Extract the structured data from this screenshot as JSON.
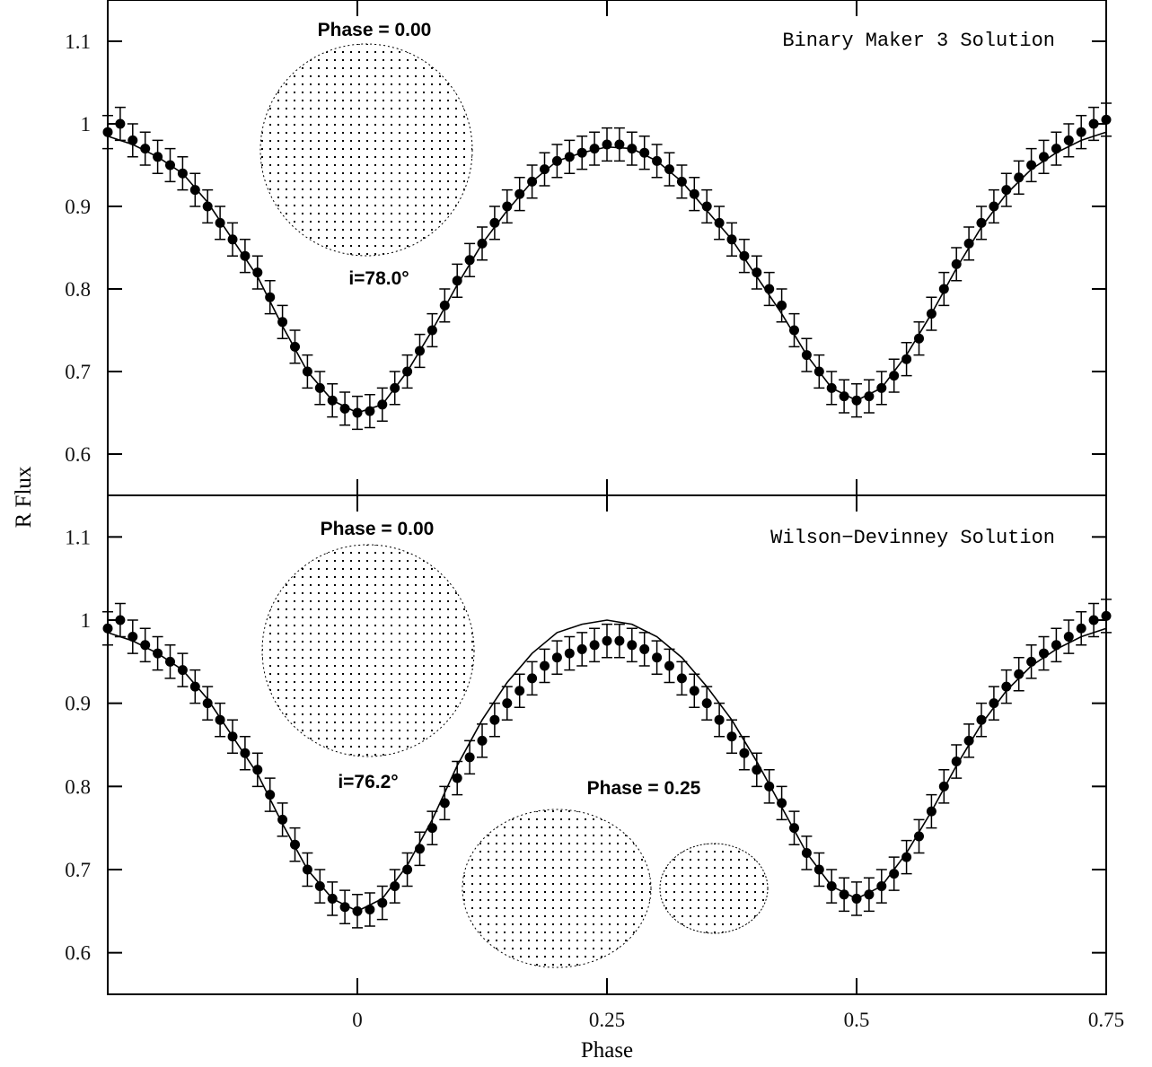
{
  "chart_data": [
    {
      "type": "scatter",
      "xlim": [
        -0.25,
        0.75
      ],
      "xticks": [
        0,
        0.25,
        0.5,
        0.75
      ],
      "xticklabels": false,
      "ylim": [
        0.55,
        1.15
      ],
      "yticks": [
        0.6,
        0.7,
        0.8,
        0.9,
        1,
        1.1
      ],
      "ylabel": "R Flux",
      "annotations": [
        "Phase = 0.00",
        "i=78.0°",
        "Binary Maker 3 Solution"
      ],
      "x": [
        -0.25,
        -0.2375,
        -0.225,
        -0.2125,
        -0.2,
        -0.1875,
        -0.175,
        -0.1625,
        -0.15,
        -0.1375,
        -0.125,
        -0.1125,
        -0.1,
        -0.0875,
        -0.075,
        -0.0625,
        -0.05,
        -0.0375,
        -0.025,
        -0.0125,
        0,
        0.0125,
        0.025,
        0.0375,
        0.05,
        0.0625,
        0.075,
        0.0875,
        0.1,
        0.1125,
        0.125,
        0.1375,
        0.15,
        0.1625,
        0.175,
        0.1875,
        0.2,
        0.2125,
        0.225,
        0.2375,
        0.25,
        0.2625,
        0.275,
        0.2875,
        0.3,
        0.3125,
        0.325,
        0.3375,
        0.35,
        0.3625,
        0.375,
        0.3875,
        0.4,
        0.4125,
        0.425,
        0.4375,
        0.45,
        0.4625,
        0.475,
        0.4875,
        0.5,
        0.5125,
        0.525,
        0.5375,
        0.55,
        0.5625,
        0.575,
        0.5875,
        0.6,
        0.6125,
        0.625,
        0.6375,
        0.65,
        0.6625,
        0.675,
        0.6875,
        0.7,
        0.7125,
        0.725,
        0.7375,
        0.75
      ],
      "series": [
        {
          "style": "points",
          "color": "#000000",
          "error": 0.02,
          "values": [
            0.99,
            1.0,
            0.98,
            0.97,
            0.96,
            0.95,
            0.94,
            0.92,
            0.9,
            0.88,
            0.86,
            0.84,
            0.82,
            0.79,
            0.76,
            0.73,
            0.7,
            0.68,
            0.665,
            0.655,
            0.65,
            0.652,
            0.66,
            0.68,
            0.7,
            0.725,
            0.75,
            0.78,
            0.81,
            0.835,
            0.855,
            0.88,
            0.9,
            0.915,
            0.93,
            0.945,
            0.955,
            0.96,
            0.965,
            0.97,
            0.975,
            0.975,
            0.97,
            0.965,
            0.955,
            0.945,
            0.93,
            0.915,
            0.9,
            0.88,
            0.86,
            0.84,
            0.82,
            0.8,
            0.78,
            0.75,
            0.72,
            0.7,
            0.68,
            0.67,
            0.665,
            0.67,
            0.68,
            0.695,
            0.715,
            0.74,
            0.77,
            0.8,
            0.83,
            0.855,
            0.88,
            0.9,
            0.92,
            0.935,
            0.95,
            0.96,
            0.97,
            0.98,
            0.99,
            1.0,
            1.005
          ]
        },
        {
          "style": "line",
          "color": "#000000",
          "x": [
            -0.25,
            -0.225,
            -0.2,
            -0.175,
            -0.15,
            -0.125,
            -0.1,
            -0.075,
            -0.05,
            -0.025,
            0,
            0.025,
            0.05,
            0.075,
            0.1,
            0.125,
            0.15,
            0.175,
            0.2,
            0.225,
            0.25,
            0.275,
            0.3,
            0.325,
            0.35,
            0.375,
            0.4,
            0.425,
            0.45,
            0.475,
            0.5,
            0.525,
            0.55,
            0.575,
            0.6,
            0.625,
            0.65,
            0.675,
            0.7,
            0.725,
            0.75
          ],
          "values": [
            0.985,
            0.975,
            0.96,
            0.94,
            0.905,
            0.86,
            0.815,
            0.755,
            0.7,
            0.665,
            0.65,
            0.66,
            0.7,
            0.75,
            0.805,
            0.855,
            0.895,
            0.93,
            0.955,
            0.965,
            0.972,
            0.97,
            0.955,
            0.93,
            0.895,
            0.86,
            0.815,
            0.77,
            0.72,
            0.68,
            0.665,
            0.68,
            0.72,
            0.77,
            0.825,
            0.875,
            0.915,
            0.945,
            0.965,
            0.98,
            0.99
          ]
        }
      ]
    },
    {
      "type": "scatter",
      "xlim": [
        -0.25,
        0.75
      ],
      "xticks": [
        0,
        0.25,
        0.5,
        0.75
      ],
      "xticklabels": true,
      "ylim": [
        0.55,
        1.15
      ],
      "yticks": [
        0.6,
        0.7,
        0.8,
        0.9,
        1,
        1.1
      ],
      "xlabel": "Phase",
      "annotations": [
        "Phase = 0.00",
        "i=76.2°",
        "Phase = 0.25",
        "Wilson−Devinney Solution"
      ],
      "x": [
        -0.25,
        -0.2375,
        -0.225,
        -0.2125,
        -0.2,
        -0.1875,
        -0.175,
        -0.1625,
        -0.15,
        -0.1375,
        -0.125,
        -0.1125,
        -0.1,
        -0.0875,
        -0.075,
        -0.0625,
        -0.05,
        -0.0375,
        -0.025,
        -0.0125,
        0,
        0.0125,
        0.025,
        0.0375,
        0.05,
        0.0625,
        0.075,
        0.0875,
        0.1,
        0.1125,
        0.125,
        0.1375,
        0.15,
        0.1625,
        0.175,
        0.1875,
        0.2,
        0.2125,
        0.225,
        0.2375,
        0.25,
        0.2625,
        0.275,
        0.2875,
        0.3,
        0.3125,
        0.325,
        0.3375,
        0.35,
        0.3625,
        0.375,
        0.3875,
        0.4,
        0.4125,
        0.425,
        0.4375,
        0.45,
        0.4625,
        0.475,
        0.4875,
        0.5,
        0.5125,
        0.525,
        0.5375,
        0.55,
        0.5625,
        0.575,
        0.5875,
        0.6,
        0.6125,
        0.625,
        0.6375,
        0.65,
        0.6625,
        0.675,
        0.6875,
        0.7,
        0.7125,
        0.725,
        0.7375,
        0.75
      ],
      "series": [
        {
          "style": "points",
          "color": "#000000",
          "error": 0.02,
          "values": [
            0.99,
            1.0,
            0.98,
            0.97,
            0.96,
            0.95,
            0.94,
            0.92,
            0.9,
            0.88,
            0.86,
            0.84,
            0.82,
            0.79,
            0.76,
            0.73,
            0.7,
            0.68,
            0.665,
            0.655,
            0.65,
            0.652,
            0.66,
            0.68,
            0.7,
            0.725,
            0.75,
            0.78,
            0.81,
            0.835,
            0.855,
            0.88,
            0.9,
            0.915,
            0.93,
            0.945,
            0.955,
            0.96,
            0.965,
            0.97,
            0.975,
            0.975,
            0.97,
            0.965,
            0.955,
            0.945,
            0.93,
            0.915,
            0.9,
            0.88,
            0.86,
            0.84,
            0.82,
            0.8,
            0.78,
            0.75,
            0.72,
            0.7,
            0.68,
            0.67,
            0.665,
            0.67,
            0.68,
            0.695,
            0.715,
            0.74,
            0.77,
            0.8,
            0.83,
            0.855,
            0.88,
            0.9,
            0.92,
            0.935,
            0.95,
            0.96,
            0.97,
            0.98,
            0.99,
            1.0,
            1.005
          ]
        },
        {
          "style": "line",
          "color": "#000000",
          "x": [
            -0.25,
            -0.225,
            -0.2,
            -0.175,
            -0.15,
            -0.125,
            -0.1,
            -0.075,
            -0.05,
            -0.025,
            0,
            0.025,
            0.05,
            0.075,
            0.1,
            0.125,
            0.15,
            0.175,
            0.2,
            0.225,
            0.25,
            0.275,
            0.3,
            0.325,
            0.35,
            0.375,
            0.4,
            0.425,
            0.45,
            0.475,
            0.5,
            0.525,
            0.55,
            0.575,
            0.6,
            0.625,
            0.65,
            0.675,
            0.7,
            0.725,
            0.75
          ],
          "values": [
            0.985,
            0.975,
            0.96,
            0.94,
            0.905,
            0.86,
            0.815,
            0.755,
            0.7,
            0.665,
            0.65,
            0.665,
            0.705,
            0.76,
            0.825,
            0.88,
            0.925,
            0.96,
            0.985,
            0.995,
            1.0,
            0.995,
            0.98,
            0.955,
            0.92,
            0.88,
            0.83,
            0.775,
            0.72,
            0.68,
            0.665,
            0.68,
            0.72,
            0.77,
            0.825,
            0.875,
            0.915,
            0.945,
            0.965,
            0.98,
            0.99
          ]
        }
      ]
    }
  ]
}
